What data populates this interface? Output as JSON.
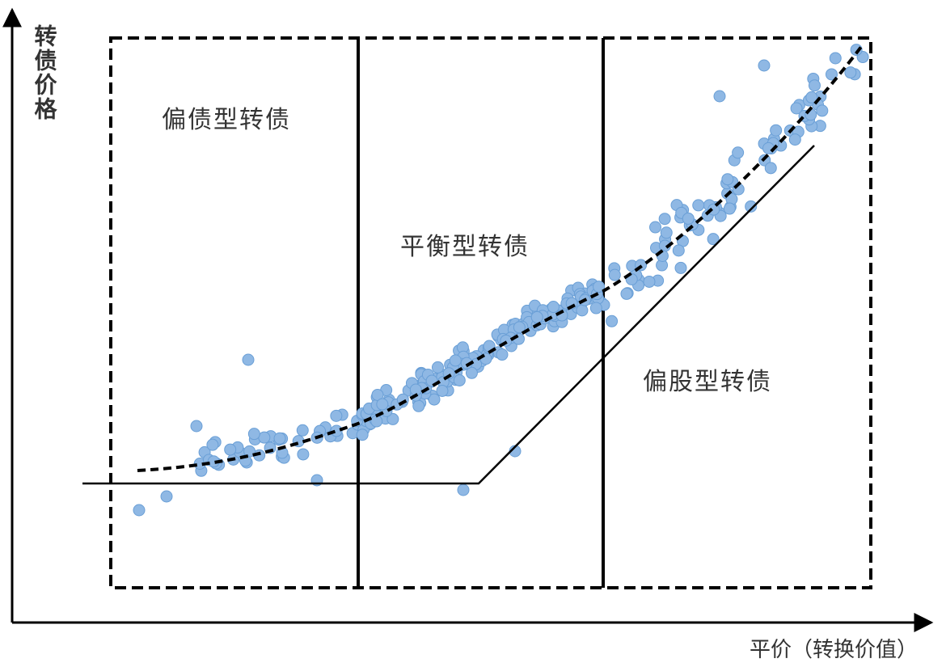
{
  "y_axis_label": "转债价格",
  "x_axis_label": "平价（转换价值）",
  "regions": [
    "偏债型转债",
    "平衡型转债",
    "偏股型转债"
  ]
}
